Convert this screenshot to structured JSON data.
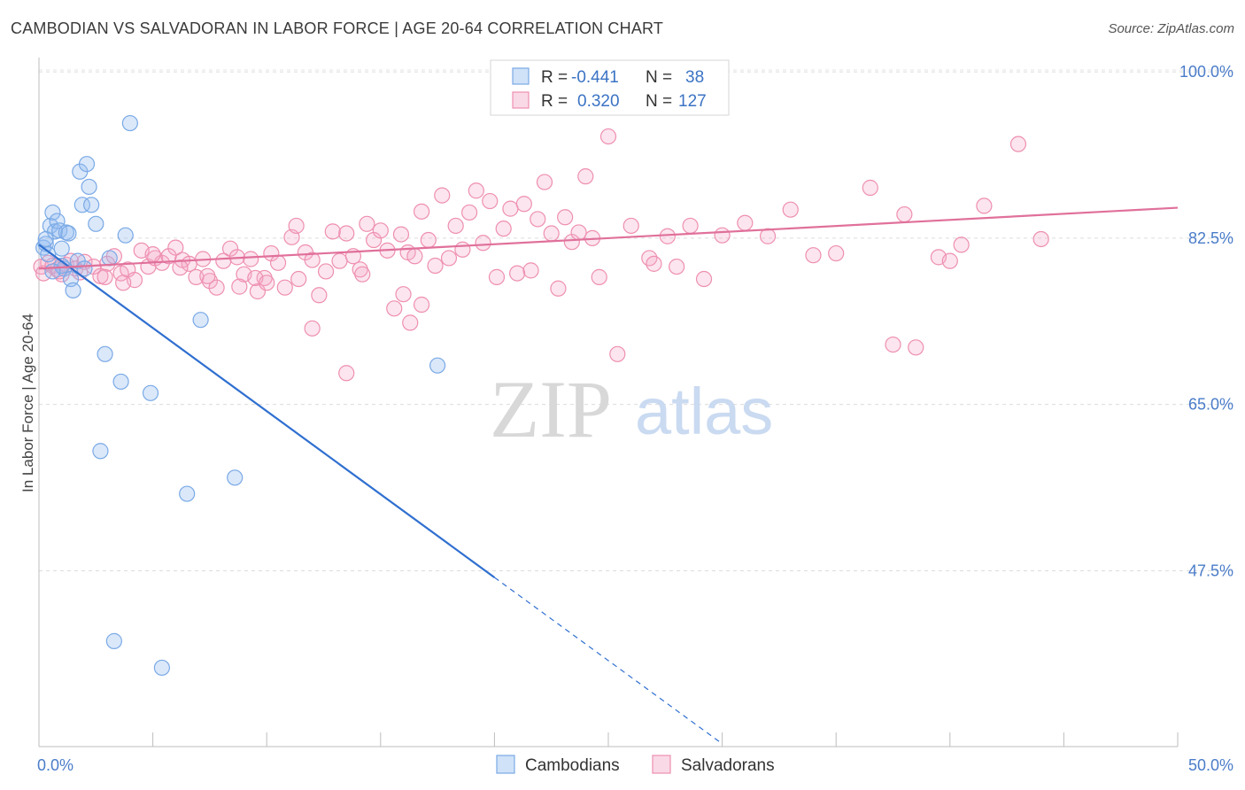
{
  "title": "CAMBODIAN VS SALVADORAN IN LABOR FORCE | AGE 20-64 CORRELATION CHART",
  "source": "Source: ZipAtlas.com",
  "watermark": {
    "zip": "ZIP",
    "atlas": "atlas"
  },
  "colors": {
    "blue": "#7aa9e6",
    "blue_fill": "rgba(150,190,240,0.35)",
    "blue_line": "#2f6fd0",
    "pink": "#ee8fb0",
    "pink_fill": "rgba(245,170,200,0.30)",
    "pink_line": "#e0709a",
    "tick": "#4a7cc9"
  },
  "legend": {
    "rows": [
      {
        "r_label": "R =",
        "r_value": "-0.441",
        "n_label": "N =",
        "n_value": "38"
      },
      {
        "r_label": "R =",
        "r_value": "0.320",
        "n_label": "N =",
        "n_value": "127"
      }
    ]
  },
  "chart_data": {
    "type": "scatter",
    "title": "CAMBODIAN VS SALVADORAN IN LABOR FORCE | AGE 20-64 CORRELATION CHART",
    "xlabel": "",
    "ylabel": "In Labor Force | Age 20-64",
    "xlim": [
      0,
      50
    ],
    "ylim": [
      29,
      101.5
    ],
    "x_tick_labels": [
      "0.0%",
      "50.0%"
    ],
    "y_ticks": [
      47.5,
      65.0,
      82.5,
      100.0
    ],
    "y_tick_labels": [
      "47.5%",
      "65.0%",
      "82.5%",
      "100.0%"
    ],
    "grid": "horizontal-dashed",
    "legend_position": "top-center",
    "series": [
      {
        "name": "Cambodians",
        "color": "#7aa9e6",
        "r": -0.441,
        "n": 38,
        "trend": {
          "x0": 0.0,
          "y0": 81.8,
          "x1": 20.0,
          "y1": 46.8,
          "dash_to_x": 30.0
        },
        "points": [
          [
            0.2,
            81.5
          ],
          [
            0.3,
            81.9
          ],
          [
            0.4,
            80.8
          ],
          [
            0.5,
            83.8
          ],
          [
            0.6,
            85.2
          ],
          [
            0.7,
            83.2
          ],
          [
            0.8,
            84.3
          ],
          [
            0.9,
            83.3
          ],
          [
            1.0,
            81.4
          ],
          [
            1.1,
            79.3
          ],
          [
            1.2,
            83.1
          ],
          [
            1.3,
            83.0
          ],
          [
            1.4,
            78.2
          ],
          [
            1.5,
            77.0
          ],
          [
            1.7,
            80.1
          ],
          [
            1.8,
            89.5
          ],
          [
            1.9,
            86.0
          ],
          [
            2.0,
            79.3
          ],
          [
            2.1,
            90.3
          ],
          [
            2.2,
            87.9
          ],
          [
            2.3,
            86.0
          ],
          [
            2.5,
            84.0
          ],
          [
            2.7,
            60.1
          ],
          [
            2.9,
            70.3
          ],
          [
            3.1,
            80.4
          ],
          [
            3.3,
            40.1
          ],
          [
            3.6,
            67.4
          ],
          [
            3.8,
            82.8
          ],
          [
            4.0,
            94.6
          ],
          [
            4.9,
            66.2
          ],
          [
            5.4,
            37.3
          ],
          [
            6.5,
            55.6
          ],
          [
            7.1,
            73.9
          ],
          [
            8.6,
            57.3
          ],
          [
            17.5,
            69.1
          ],
          [
            0.3,
            82.4
          ],
          [
            1.0,
            79.6
          ],
          [
            0.6,
            79.0
          ]
        ]
      },
      {
        "name": "Salvadorans",
        "color": "#ee8fb0",
        "r": 0.32,
        "n": 127,
        "trend": {
          "x0": 0.0,
          "y0": 79.3,
          "x1": 50.0,
          "y1": 85.7
        },
        "points": [
          [
            0.1,
            79.5
          ],
          [
            0.2,
            78.8
          ],
          [
            0.4,
            79.9
          ],
          [
            0.6,
            79.6
          ],
          [
            0.8,
            79.2
          ],
          [
            1.0,
            78.7
          ],
          [
            1.2,
            79.7
          ],
          [
            1.4,
            80.1
          ],
          [
            1.6,
            79.3
          ],
          [
            2.0,
            80.0
          ],
          [
            2.4,
            79.5
          ],
          [
            2.7,
            78.5
          ],
          [
            3.0,
            79.8
          ],
          [
            3.3,
            80.6
          ],
          [
            3.6,
            78.8
          ],
          [
            3.9,
            79.2
          ],
          [
            4.2,
            78.1
          ],
          [
            4.5,
            81.2
          ],
          [
            4.8,
            79.5
          ],
          [
            5.1,
            80.4
          ],
          [
            5.4,
            79.9
          ],
          [
            5.7,
            80.6
          ],
          [
            6.0,
            81.5
          ],
          [
            6.3,
            80.2
          ],
          [
            6.6,
            79.8
          ],
          [
            6.9,
            78.4
          ],
          [
            7.2,
            80.3
          ],
          [
            7.5,
            78.0
          ],
          [
            7.8,
            77.3
          ],
          [
            8.1,
            80.1
          ],
          [
            8.4,
            81.4
          ],
          [
            8.7,
            80.5
          ],
          [
            9.0,
            78.7
          ],
          [
            9.3,
            80.3
          ],
          [
            9.6,
            76.9
          ],
          [
            9.9,
            78.3
          ],
          [
            10.2,
            80.9
          ],
          [
            10.5,
            79.9
          ],
          [
            10.8,
            77.3
          ],
          [
            11.1,
            82.6
          ],
          [
            11.4,
            78.2
          ],
          [
            11.7,
            81.0
          ],
          [
            12.0,
            80.2
          ],
          [
            12.3,
            76.5
          ],
          [
            12.6,
            79.0
          ],
          [
            12.9,
            83.2
          ],
          [
            13.2,
            80.1
          ],
          [
            13.5,
            83.0
          ],
          [
            13.8,
            80.6
          ],
          [
            14.1,
            79.2
          ],
          [
            14.4,
            84.0
          ],
          [
            14.7,
            82.3
          ],
          [
            15.0,
            83.3
          ],
          [
            15.3,
            81.2
          ],
          [
            15.6,
            75.1
          ],
          [
            15.9,
            82.9
          ],
          [
            16.2,
            81.0
          ],
          [
            16.5,
            80.6
          ],
          [
            16.8,
            85.3
          ],
          [
            17.1,
            82.3
          ],
          [
            17.4,
            79.6
          ],
          [
            17.7,
            87.0
          ],
          [
            18.0,
            80.4
          ],
          [
            18.3,
            83.8
          ],
          [
            18.6,
            81.3
          ],
          [
            18.9,
            85.2
          ],
          [
            19.2,
            87.5
          ],
          [
            19.5,
            82.0
          ],
          [
            19.8,
            86.4
          ],
          [
            20.1,
            78.4
          ],
          [
            20.4,
            83.5
          ],
          [
            20.7,
            85.6
          ],
          [
            21.0,
            78.8
          ],
          [
            21.3,
            86.1
          ],
          [
            21.6,
            79.1
          ],
          [
            21.9,
            84.5
          ],
          [
            22.2,
            88.4
          ],
          [
            22.5,
            83.0
          ],
          [
            22.8,
            77.2
          ],
          [
            23.1,
            84.7
          ],
          [
            23.4,
            82.1
          ],
          [
            23.7,
            83.1
          ],
          [
            24.0,
            89.0
          ],
          [
            24.3,
            82.5
          ],
          [
            24.6,
            78.4
          ],
          [
            25.0,
            93.2
          ],
          [
            25.4,
            70.3
          ],
          [
            26.0,
            83.8
          ],
          [
            26.8,
            80.4
          ],
          [
            27.0,
            79.8
          ],
          [
            27.6,
            82.7
          ],
          [
            28.0,
            79.5
          ],
          [
            28.6,
            83.8
          ],
          [
            29.2,
            78.2
          ],
          [
            30.0,
            82.8
          ],
          [
            31.0,
            84.1
          ],
          [
            32.0,
            82.7
          ],
          [
            33.0,
            85.5
          ],
          [
            34.0,
            80.7
          ],
          [
            35.0,
            80.9
          ],
          [
            36.5,
            87.8
          ],
          [
            37.5,
            71.3
          ],
          [
            38.0,
            85.0
          ],
          [
            38.5,
            71.0
          ],
          [
            39.5,
            80.5
          ],
          [
            40.0,
            80.1
          ],
          [
            40.5,
            81.8
          ],
          [
            41.5,
            85.9
          ],
          [
            43.0,
            92.4
          ],
          [
            44.0,
            82.4
          ],
          [
            12.0,
            73.0
          ],
          [
            13.5,
            68.3
          ],
          [
            16.0,
            76.6
          ],
          [
            16.3,
            73.6
          ],
          [
            16.8,
            75.5
          ],
          [
            14.2,
            78.7
          ],
          [
            11.3,
            83.8
          ],
          [
            8.8,
            77.4
          ],
          [
            7.4,
            78.5
          ],
          [
            6.2,
            79.4
          ],
          [
            5.0,
            80.8
          ],
          [
            9.5,
            78.3
          ],
          [
            10.0,
            77.8
          ],
          [
            3.7,
            77.8
          ],
          [
            2.9,
            78.4
          ],
          [
            1.8,
            78.9
          ],
          [
            0.9,
            79.0
          ]
        ]
      }
    ]
  }
}
